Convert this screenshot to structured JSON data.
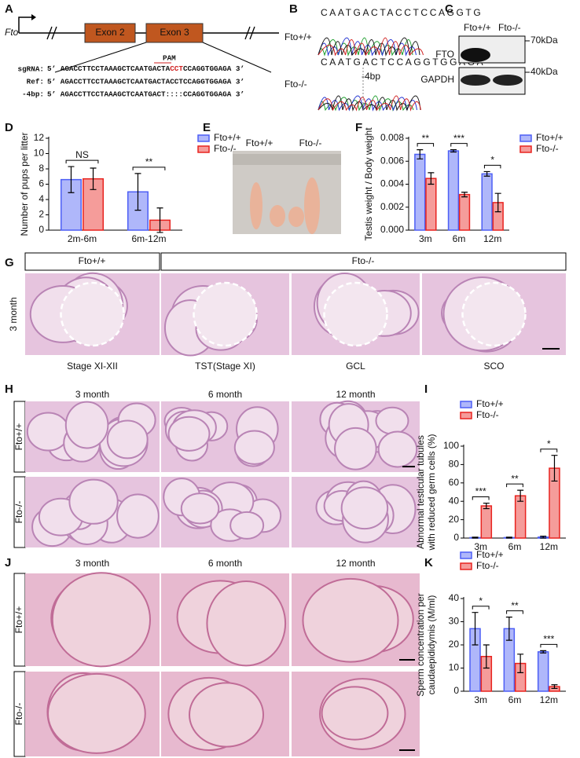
{
  "panel_labels": [
    "A",
    "B",
    "C",
    "D",
    "E",
    "F",
    "G",
    "H",
    "I",
    "J",
    "K"
  ],
  "a": {
    "gene": "Fto",
    "exons": [
      "Exon 2",
      "Exon 3"
    ],
    "pam": "PAM",
    "prefixes": [
      "sgRNA:",
      "Ref:",
      "-4bp:"
    ],
    "sgrna": [
      "5’ AGACCTTCCTAAAGCTCAATGACTA",
      "CCT",
      "CCAGGTGGAGA 3’"
    ],
    "ref": "5’ AGACCTTCCTAAAGCTCAATGACTACCTCCAGGTGGAGA 3’",
    "del": "5’ AGACCTTCCTAAAGCTCAATGACT::::CCAGGTGGAGA 3’"
  },
  "b": {
    "genotypes": [
      "Fto+/+",
      "Fto-/-"
    ],
    "seq_wt": "CAATGACTACCTCCAGGTG",
    "seq_ko": "CAATGACTCCAGGTGGAGA",
    "deletion": "-4bp"
  },
  "c": {
    "genotypes": [
      "Fto+/+",
      "Fto-/-"
    ],
    "proteins": [
      "FTO",
      "GAPDH"
    ],
    "markers": [
      "70kDa",
      "40kDa"
    ]
  },
  "d": {
    "type": "bar",
    "y_label": [
      "Number of pups per litter"
    ],
    "categories": [
      "2m-6m",
      "6m-12m"
    ],
    "series": [
      {
        "name": "Fto+/+",
        "color": "#4d5ff5",
        "values": [
          6.6,
          5.0
        ],
        "errors": [
          1.7,
          2.4
        ]
      },
      {
        "name": "Fto-/-",
        "color": "#e8231f",
        "values": [
          6.7,
          1.3
        ],
        "errors": [
          1.4,
          1.6
        ]
      }
    ],
    "significance": [
      "NS",
      "**"
    ],
    "ylim": [
      0,
      12
    ],
    "yticks": [
      0,
      2,
      4,
      6,
      8,
      10,
      12
    ]
  },
  "e": {
    "genotypes": [
      "Fto+/+",
      "Fto-/-"
    ]
  },
  "f": {
    "type": "bar",
    "y_label": [
      "Testis weight / Body weight"
    ],
    "categories": [
      "3m",
      "6m",
      "12m"
    ],
    "series": [
      {
        "name": "Fto+/+",
        "color": "#4d5ff5",
        "values": [
          0.0066,
          0.0069,
          0.0049
        ],
        "errors": [
          0.0004,
          0.0001,
          0.0002
        ]
      },
      {
        "name": "Fto-/-",
        "color": "#e8231f",
        "values": [
          0.0045,
          0.0031,
          0.0024
        ],
        "errors": [
          0.0005,
          0.0002,
          0.0008
        ]
      }
    ],
    "significance": [
      "**",
      "***",
      "*"
    ],
    "ylim": [
      0,
      0.008
    ],
    "yticks": [
      {
        "value": 0,
        "label": "0.000"
      },
      {
        "value": 0.002,
        "label": "0.002"
      },
      {
        "value": 0.004,
        "label": "0.004"
      },
      {
        "value": 0.006,
        "label": "0.006"
      },
      {
        "value": 0.008,
        "label": "0.008"
      }
    ]
  },
  "g": {
    "groups": [
      "Fto+/+",
      "Fto-/-"
    ],
    "row_label": "3 month",
    "captions": [
      "Stage XI-XII",
      "TST(Stage XI)",
      "GCL",
      "SCO"
    ]
  },
  "h": {
    "columns": [
      "3 month",
      "6 month",
      "12 month"
    ],
    "rows": [
      "Fto+/+",
      "Fto-/-"
    ]
  },
  "i": {
    "type": "bar",
    "y_label": [
      "Abnormal testicular tubules",
      "with reduced germ cells (%)"
    ],
    "categories": [
      "3m",
      "6m",
      "12m"
    ],
    "series": [
      {
        "name": "Fto+/+",
        "color": "#4d5ff5",
        "values": [
          0.5,
          0.5,
          1
        ],
        "errors": [
          0.5,
          0.5,
          1
        ]
      },
      {
        "name": "Fto-/-",
        "color": "#e8231f",
        "values": [
          35,
          46,
          76
        ],
        "errors": [
          3,
          6,
          14
        ]
      }
    ],
    "significance": [
      "***",
      "**",
      "*"
    ],
    "ylim": [
      0,
      100
    ],
    "yticks": [
      0,
      20,
      40,
      60,
      80,
      100
    ]
  },
  "j": {
    "columns": [
      "3 month",
      "6 month",
      "12 month"
    ],
    "rows": [
      "Fto+/+",
      "Fto-/-"
    ]
  },
  "k": {
    "type": "bar",
    "y_label": [
      "Sperm concentration per",
      "caudaepididymis (M/ml)"
    ],
    "categories": [
      "3m",
      "6m",
      "12m"
    ],
    "series": [
      {
        "name": "Fto+/+",
        "color": "#4d5ff5",
        "values": [
          27,
          27,
          17
        ],
        "errors": [
          7,
          5,
          0.5
        ]
      },
      {
        "name": "Fto-/-",
        "color": "#e8231f",
        "values": [
          15,
          12,
          2
        ],
        "errors": [
          5,
          4,
          0.8
        ]
      }
    ],
    "significance": [
      "*",
      "**",
      "***"
    ],
    "ylim": [
      0,
      40
    ],
    "yticks": [
      0,
      10,
      20,
      30,
      40
    ]
  }
}
